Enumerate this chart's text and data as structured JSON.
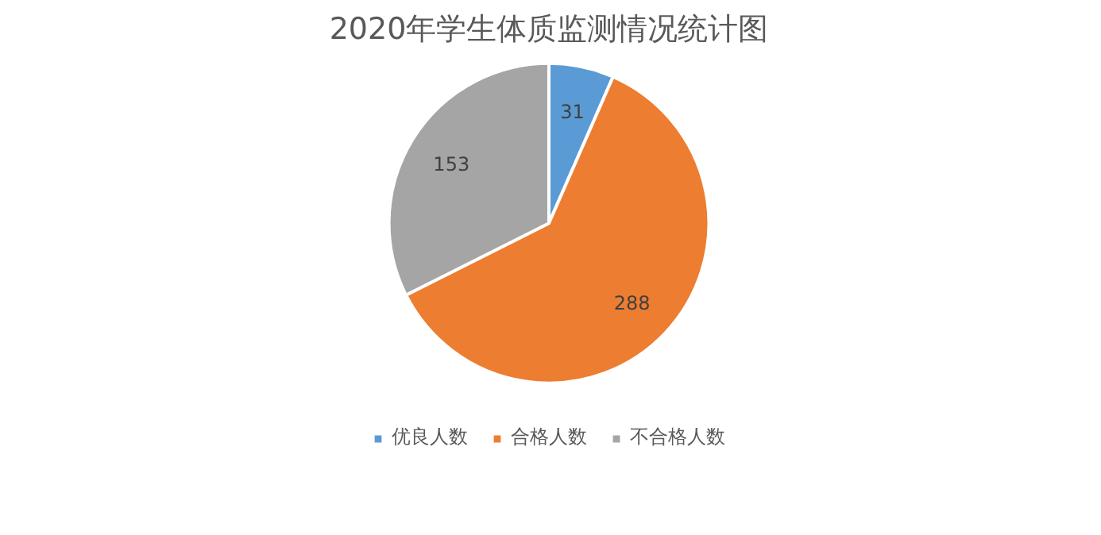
{
  "chart_data": {
    "type": "pie",
    "title": "2020年学生体质监测情况统计图",
    "categories": [
      "优良人数",
      "合格人数",
      "不合格人数"
    ],
    "values": [
      31,
      288,
      153
    ],
    "colors": [
      "#5b9bd5",
      "#ed7d31",
      "#a5a5a5"
    ],
    "data_labels": true,
    "legend": "bottom"
  }
}
